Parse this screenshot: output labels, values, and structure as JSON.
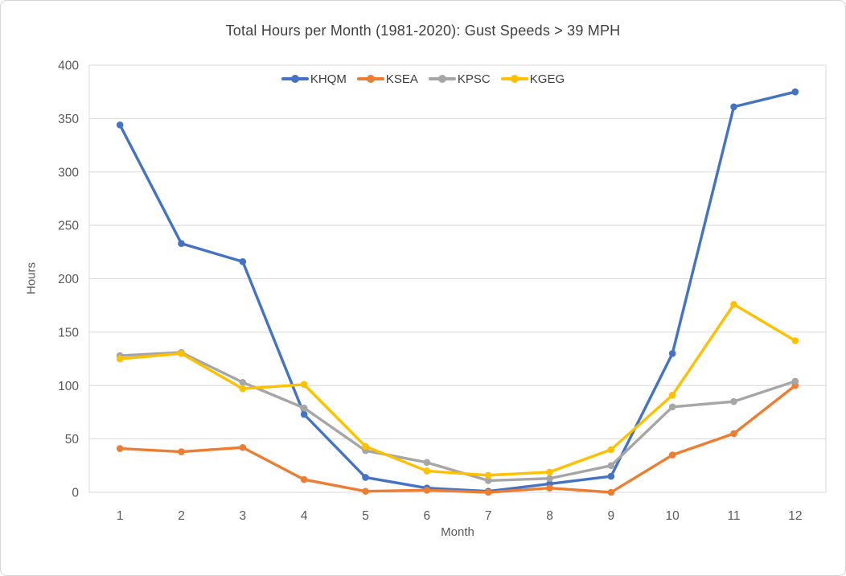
{
  "window": {
    "background": "#ffffff",
    "border_color": "#d5d5d5"
  },
  "chart_data": {
    "type": "line",
    "title": "Total Hours per Month (1981-2020): Gust Speeds > 39 MPH",
    "xlabel": "Month",
    "ylabel": "Hours",
    "categories": [
      "1",
      "2",
      "3",
      "4",
      "5",
      "6",
      "7",
      "8",
      "9",
      "10",
      "11",
      "12"
    ],
    "series": [
      {
        "name": "KHQM",
        "color": "#4472C4",
        "values": [
          344,
          233,
          216,
          73,
          14,
          4,
          1,
          8,
          15,
          130,
          361,
          375
        ]
      },
      {
        "name": "KSEA",
        "color": "#ED7D31",
        "values": [
          41,
          38,
          42,
          12,
          1,
          2,
          0,
          4,
          0,
          35,
          55,
          100
        ]
      },
      {
        "name": "KPSC",
        "color": "#A6A6A6",
        "values": [
          128,
          131,
          103,
          79,
          39,
          28,
          11,
          13,
          25,
          80,
          85,
          104
        ]
      },
      {
        "name": "KGEG",
        "color": "#FFC000",
        "values": [
          125,
          130,
          97,
          101,
          43,
          20,
          16,
          19,
          40,
          91,
          176,
          142
        ]
      }
    ],
    "ylim": [
      0,
      400
    ],
    "ytick_step": 50,
    "yticks": [
      "0",
      "50",
      "100",
      "150",
      "200",
      "250",
      "300",
      "350",
      "400"
    ],
    "grid": true,
    "legend_position": "top-center",
    "colors": {
      "grid": "#d9d9d9",
      "axis_text": "#595959",
      "title_text": "#404040",
      "legend_text": "#3d3d3d"
    }
  }
}
